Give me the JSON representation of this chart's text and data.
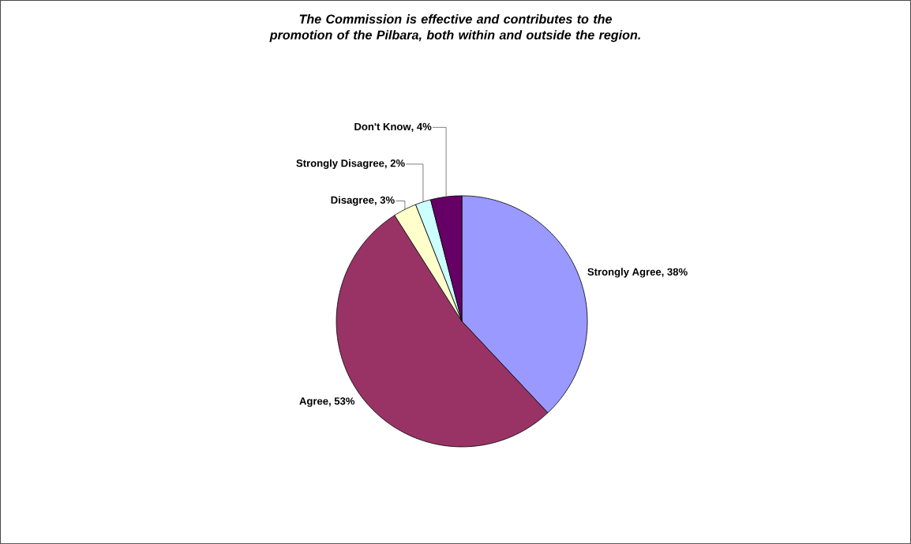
{
  "chart_data": {
    "type": "pie",
    "title": "The Commission is effective and contributes to the promotion of the Pilbara, both within and outside the region.",
    "categories": [
      "Strongly Agree",
      "Agree",
      "Disagree",
      "Strongly Disagree",
      "Don't Know"
    ],
    "values": [
      38,
      53,
      3,
      2,
      4
    ],
    "value_labels": [
      ", 38%",
      ", 53%",
      ", 3%",
      ", 2%",
      ", 4%"
    ],
    "colors": [
      "#9999ff",
      "#993366",
      "#ffffcc",
      "#ccffff",
      "#660066"
    ],
    "legend": false
  }
}
